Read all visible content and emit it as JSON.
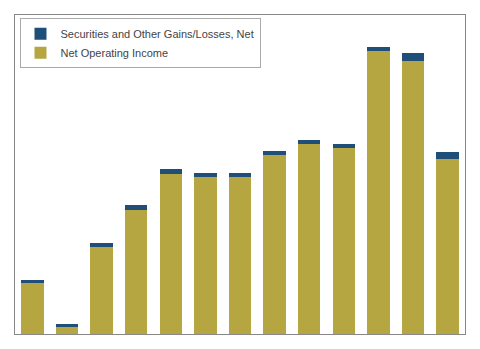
{
  "chart_data": {
    "type": "bar",
    "stacked": true,
    "categories": [
      null,
      null,
      null,
      null,
      null,
      null,
      null,
      null,
      null,
      null,
      null,
      null,
      null
    ],
    "series": [
      {
        "name": "Net Operating Income",
        "color": "#B5A642",
        "values": [
          0.28,
          0.04,
          0.48,
          0.68,
          0.88,
          0.86,
          0.86,
          0.98,
          1.04,
          1.02,
          1.55,
          1.5,
          0.96
        ]
      },
      {
        "name": "Securities and Other Gains/Losses, Net",
        "color": "#1F4E79",
        "values": [
          0.015,
          0.015,
          0.02,
          0.025,
          0.025,
          0.025,
          0.025,
          0.025,
          0.025,
          0.025,
          0.025,
          0.04,
          0.04
        ]
      }
    ],
    "ylim": [
      0,
      1.75
    ],
    "yticks": [],
    "grid": false,
    "legend": "upper left",
    "tick_labels": false
  }
}
